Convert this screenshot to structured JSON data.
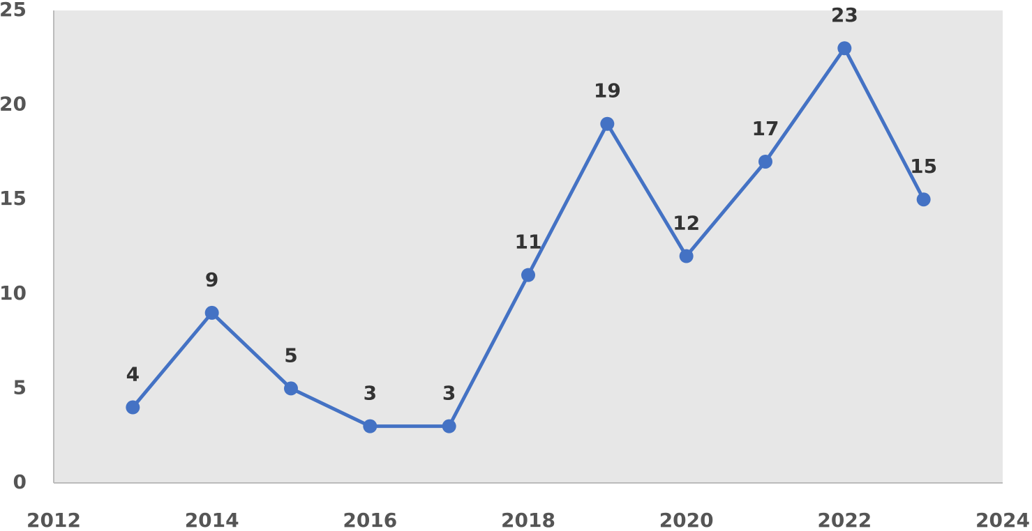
{
  "chart_data": {
    "type": "line",
    "x": [
      2013,
      2014,
      2015,
      2016,
      2017,
      2018,
      2019,
      2020,
      2021,
      2022,
      2023
    ],
    "series": [
      {
        "color": "#4472c4",
        "values": [
          4,
          9,
          5,
          3,
          3,
          11,
          19,
          12,
          17,
          23,
          15
        ]
      }
    ],
    "xlim": [
      2012,
      2024
    ],
    "xticks": [
      2012,
      2014,
      2016,
      2018,
      2020,
      2022,
      2024
    ],
    "ylim": [
      0,
      25
    ],
    "yticks": [
      0,
      5,
      10,
      15,
      20,
      25
    ],
    "grid": false,
    "data_labels": true
  }
}
